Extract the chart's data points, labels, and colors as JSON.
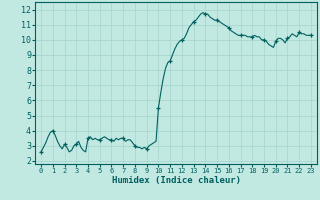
{
  "title": "",
  "xlabel": "Humidex (Indice chaleur)",
  "ylabel": "",
  "x_ticks": [
    0,
    1,
    2,
    3,
    4,
    5,
    6,
    7,
    8,
    9,
    10,
    11,
    12,
    13,
    14,
    15,
    16,
    17,
    18,
    19,
    20,
    21,
    22,
    23
  ],
  "ylim": [
    1.8,
    12.5
  ],
  "xlim": [
    -0.5,
    23.5
  ],
  "yticks": [
    2,
    3,
    4,
    5,
    6,
    7,
    8,
    9,
    10,
    11,
    12
  ],
  "bg_color": "#c2e8e2",
  "line_color": "#006060",
  "marker_color": "#006060",
  "grid_color": "#a8d8d0",
  "x_data": [
    0,
    0.2,
    0.4,
    0.6,
    0.8,
    1.0,
    1.2,
    1.4,
    1.6,
    1.8,
    2.0,
    2.2,
    2.4,
    2.6,
    2.8,
    3.0,
    3.2,
    3.4,
    3.6,
    3.8,
    4.0,
    4.2,
    4.4,
    4.6,
    4.8,
    5.0,
    5.2,
    5.4,
    5.6,
    5.8,
    6.0,
    6.2,
    6.4,
    6.6,
    6.8,
    7.0,
    7.2,
    7.4,
    7.6,
    7.8,
    8.0,
    8.2,
    8.4,
    8.6,
    8.8,
    9.0,
    9.2,
    9.4,
    9.6,
    9.8,
    10.0,
    10.2,
    10.4,
    10.6,
    10.8,
    11.0,
    11.2,
    11.4,
    11.6,
    11.8,
    12.0,
    12.2,
    12.4,
    12.6,
    12.8,
    13.0,
    13.2,
    13.4,
    13.6,
    13.8,
    14.0,
    14.2,
    14.4,
    14.6,
    14.8,
    15.0,
    15.2,
    15.4,
    15.6,
    15.8,
    16.0,
    16.2,
    16.4,
    16.6,
    16.8,
    17.0,
    17.2,
    17.4,
    17.6,
    17.8,
    18.0,
    18.2,
    18.4,
    18.6,
    18.8,
    19.0,
    19.2,
    19.4,
    19.6,
    19.8,
    20.0,
    20.2,
    20.4,
    20.6,
    20.8,
    21.0,
    21.2,
    21.4,
    21.6,
    21.8,
    22.0,
    22.2,
    22.4,
    22.6,
    22.8,
    23.0
  ],
  "y_data": [
    2.6,
    2.9,
    3.2,
    3.6,
    3.9,
    4.0,
    3.7,
    3.3,
    3.0,
    2.8,
    3.1,
    2.9,
    2.6,
    2.7,
    3.0,
    3.1,
    3.3,
    2.9,
    2.7,
    2.6,
    3.5,
    3.6,
    3.4,
    3.5,
    3.4,
    3.4,
    3.5,
    3.6,
    3.5,
    3.4,
    3.4,
    3.3,
    3.5,
    3.4,
    3.5,
    3.5,
    3.3,
    3.4,
    3.4,
    3.2,
    3.0,
    2.9,
    2.9,
    2.8,
    2.9,
    2.8,
    3.0,
    3.1,
    3.2,
    3.3,
    5.5,
    6.5,
    7.4,
    8.1,
    8.5,
    8.6,
    9.0,
    9.4,
    9.7,
    9.9,
    10.0,
    10.1,
    10.4,
    10.8,
    11.0,
    11.2,
    11.3,
    11.5,
    11.7,
    11.8,
    11.7,
    11.7,
    11.5,
    11.4,
    11.3,
    11.3,
    11.2,
    11.1,
    11.0,
    10.9,
    10.8,
    10.6,
    10.5,
    10.4,
    10.3,
    10.3,
    10.3,
    10.3,
    10.2,
    10.2,
    10.2,
    10.3,
    10.2,
    10.2,
    10.0,
    10.0,
    9.9,
    9.7,
    9.6,
    9.5,
    9.9,
    10.1,
    10.1,
    10.0,
    9.8,
    10.1,
    10.2,
    10.4,
    10.3,
    10.2,
    10.5,
    10.4,
    10.4,
    10.3,
    10.3,
    10.3
  ],
  "marker_x": [
    0,
    1,
    2,
    3,
    4,
    5,
    6,
    7,
    8,
    9,
    10,
    11,
    12,
    13,
    14,
    15,
    16,
    17,
    18,
    19,
    20,
    21,
    22,
    23
  ],
  "marker_y": [
    2.6,
    4.0,
    3.1,
    3.1,
    3.5,
    3.4,
    3.4,
    3.5,
    3.0,
    2.8,
    5.5,
    8.6,
    10.0,
    11.2,
    11.7,
    11.3,
    10.8,
    10.3,
    10.2,
    10.0,
    9.9,
    10.1,
    10.5,
    10.3
  ]
}
